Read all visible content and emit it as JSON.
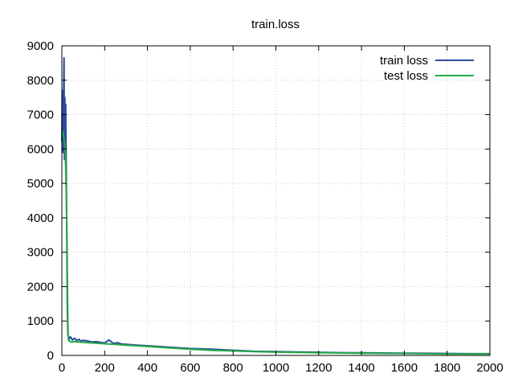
{
  "chart_data": {
    "type": "line",
    "title": "train.loss",
    "xlabel": "",
    "ylabel": "",
    "xlim": [
      0,
      2000
    ],
    "ylim": [
      0,
      9000
    ],
    "x_ticks": [
      0,
      200,
      400,
      600,
      800,
      1000,
      1200,
      1400,
      1600,
      1800,
      2000
    ],
    "y_ticks": [
      0,
      1000,
      2000,
      3000,
      4000,
      5000,
      6000,
      7000,
      8000,
      9000
    ],
    "grid": true,
    "legend_position": "top-right",
    "series": [
      {
        "name": "train loss",
        "color": "#2b4ba0",
        "x": [
          0,
          2,
          4,
          6,
          8,
          10,
          12,
          14,
          16,
          18,
          20,
          22,
          24,
          26,
          28,
          30,
          35,
          40,
          50,
          60,
          70,
          80,
          90,
          100,
          120,
          140,
          160,
          180,
          200,
          220,
          240,
          260,
          280,
          300,
          350,
          400,
          450,
          500,
          550,
          600,
          700,
          800,
          900,
          1000,
          1100,
          1200,
          1300,
          1400,
          1500,
          1600,
          1700,
          1800,
          1900,
          2000
        ],
        "values": [
          6200,
          7700,
          5900,
          6900,
          7400,
          8650,
          5700,
          7500,
          6800,
          7300,
          5800,
          4300,
          2800,
          1300,
          650,
          560,
          480,
          540,
          450,
          500,
          430,
          470,
          410,
          440,
          420,
          390,
          400,
          380,
          360,
          450,
          350,
          370,
          330,
          320,
          300,
          280,
          260,
          240,
          220,
          200,
          180,
          150,
          120,
          110,
          100,
          90,
          80,
          75,
          70,
          65,
          60,
          55,
          50,
          50
        ]
      },
      {
        "name": "test loss",
        "color": "#22aa44",
        "x": [
          0,
          4,
          8,
          12,
          16,
          20,
          24,
          26,
          28,
          30,
          35,
          40,
          50,
          60,
          80,
          100,
          150,
          200,
          250,
          300,
          400,
          500,
          600,
          700,
          800,
          900,
          1000,
          1200,
          1400,
          1600,
          1800,
          2000
        ],
        "values": [
          6400,
          6500,
          6400,
          6200,
          5900,
          5000,
          3500,
          2200,
          1000,
          480,
          420,
          400,
          390,
          400,
          390,
          380,
          360,
          340,
          320,
          300,
          260,
          220,
          180,
          150,
          130,
          110,
          95,
          80,
          65,
          55,
          45,
          40
        ]
      }
    ]
  }
}
